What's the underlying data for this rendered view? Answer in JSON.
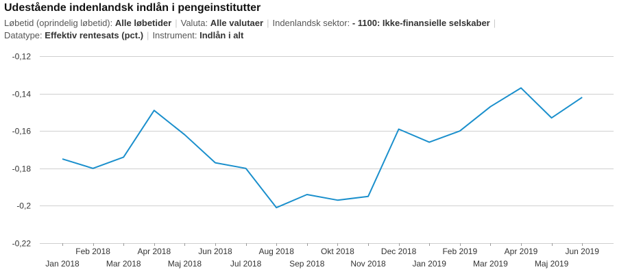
{
  "title": "Udestående indenlandsk indlån i pengeinstitutter",
  "filters": {
    "row1": [
      {
        "label": "Løbetid (oprindelig løbetid):",
        "value": "Alle løbetider"
      },
      {
        "label": "Valuta:",
        "value": "Alle valutaer"
      },
      {
        "label": "Indenlandsk sektor:",
        "value": "- 1100: Ikke-finansielle selskaber"
      }
    ],
    "row2": [
      {
        "label": "Datatype:",
        "value": "Effektiv rentesats (pct.)"
      },
      {
        "label": "Instrument:",
        "value": "Indlån i alt"
      }
    ]
  },
  "chart_data": {
    "type": "line",
    "title": "",
    "xlabel": "",
    "ylabel": "",
    "categories": [
      "Jan 2018",
      "Feb 2018",
      "Mar 2018",
      "Apr 2018",
      "Maj 2018",
      "Jun 2018",
      "Jul 2018",
      "Aug 2018",
      "Sep 2018",
      "Okt 2018",
      "Nov 2018",
      "Dec 2018",
      "Jan 2019",
      "Feb 2019",
      "Mar 2019",
      "Apr 2019",
      "Maj 2019",
      "Jun 2019"
    ],
    "values": [
      -0.175,
      -0.18,
      -0.174,
      -0.149,
      -0.162,
      -0.177,
      -0.18,
      -0.201,
      -0.194,
      -0.197,
      -0.195,
      -0.159,
      -0.166,
      -0.16,
      -0.147,
      -0.137,
      -0.153,
      -0.142
    ],
    "ylim": [
      -0.22,
      -0.12
    ],
    "yticks": [
      -0.12,
      -0.14,
      -0.16,
      -0.18,
      -0.2,
      -0.22
    ],
    "ytick_labels": [
      "-0,12",
      "-0,14",
      "-0,16",
      "-0,18",
      "-0,2",
      "-0,22"
    ],
    "grid": true,
    "legend": "none",
    "line_color": "#1a8fcc"
  }
}
